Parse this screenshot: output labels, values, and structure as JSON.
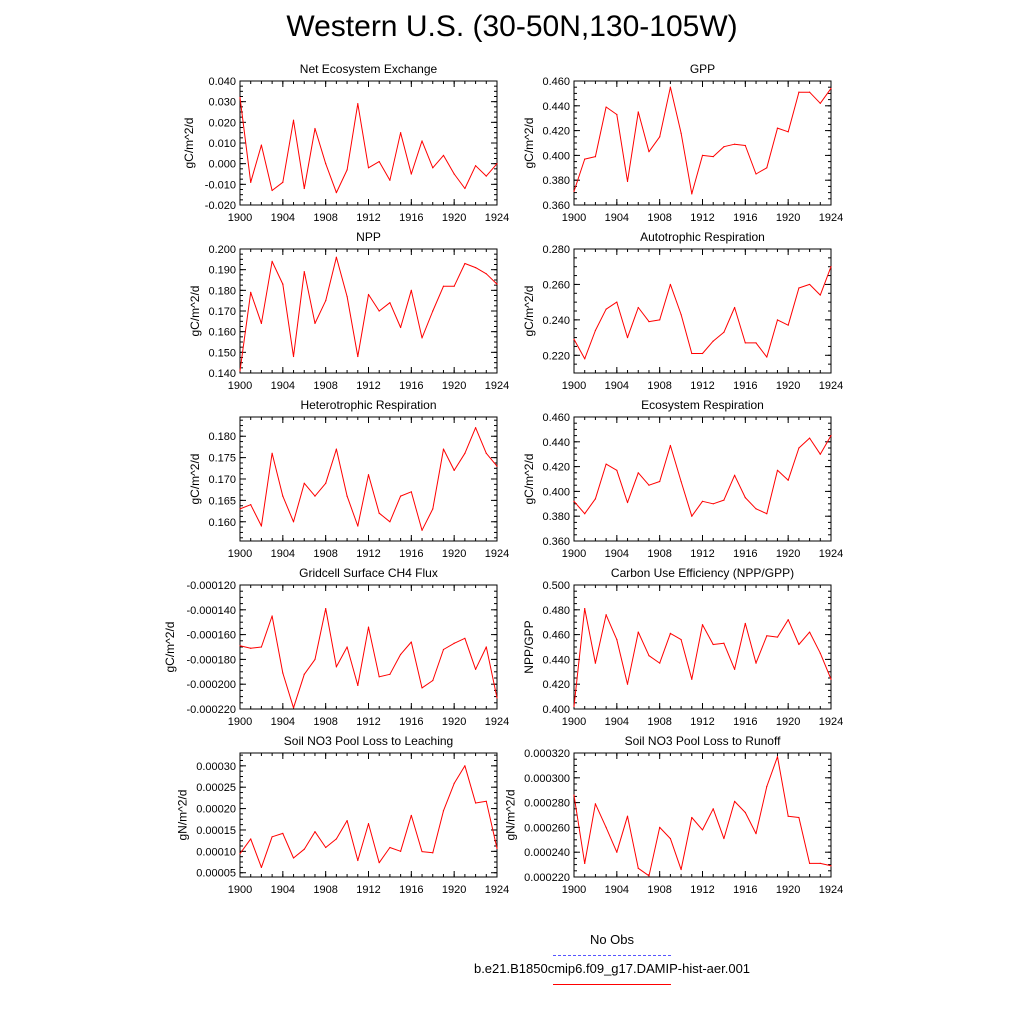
{
  "page": {
    "title": "Western U.S. (30-50N,130-105W)"
  },
  "legend": [
    {
      "label": "No Obs",
      "color": "#5555ff",
      "style": "dashed"
    },
    {
      "label": "b.e21.B1850cmip6.f09_g17.DAMIP-hist-aer.001",
      "color": "#ff0000",
      "style": "solid"
    }
  ],
  "chart_data": [
    {
      "type": "line",
      "title": "Net Ecosystem Exchange",
      "ylabel": "gC/m^2/d",
      "xlim": [
        1900,
        1924
      ],
      "ylim": [
        -0.02,
        0.04
      ],
      "xticks": [
        1900,
        1904,
        1908,
        1912,
        1916,
        1920,
        1924
      ],
      "xtick_labels": [
        "1900",
        "1904",
        "1908",
        "1912",
        "1916",
        "1920",
        "1924"
      ],
      "yticks": [
        -0.02,
        -0.01,
        0.0,
        0.01,
        0.02,
        0.03,
        0.04
      ],
      "ytick_labels": [
        "-0.020",
        "-0.010",
        "0.000",
        "0.010",
        "0.020",
        "0.030",
        "0.040"
      ],
      "series": [
        {
          "color": "#ff0000",
          "x": [
            1900,
            1901,
            1902,
            1903,
            1904,
            1905,
            1906,
            1907,
            1908,
            1909,
            1910,
            1911,
            1912,
            1913,
            1914,
            1915,
            1916,
            1917,
            1918,
            1919,
            1920,
            1921,
            1922,
            1923,
            1924
          ],
          "y": [
            0.032,
            -0.009,
            0.009,
            -0.013,
            -0.009,
            0.021,
            -0.012,
            0.017,
            0.0,
            -0.014,
            -0.003,
            0.029,
            -0.002,
            0.001,
            -0.008,
            0.015,
            -0.005,
            0.011,
            -0.002,
            0.004,
            -0.005,
            -0.012,
            -0.001,
            -0.006,
            0.0
          ]
        }
      ]
    },
    {
      "type": "line",
      "title": "GPP",
      "ylabel": "gC/m^2/d",
      "xlim": [
        1900,
        1924
      ],
      "ylim": [
        0.36,
        0.46
      ],
      "xticks": [
        1900,
        1904,
        1908,
        1912,
        1916,
        1920,
        1924
      ],
      "xtick_labels": [
        "1900",
        "1904",
        "1908",
        "1912",
        "1916",
        "1920",
        "1924"
      ],
      "yticks": [
        0.36,
        0.38,
        0.4,
        0.42,
        0.44,
        0.46
      ],
      "ytick_labels": [
        "0.360",
        "0.380",
        "0.400",
        "0.420",
        "0.440",
        "0.460"
      ],
      "series": [
        {
          "color": "#ff0000",
          "x": [
            1900,
            1901,
            1902,
            1903,
            1904,
            1905,
            1906,
            1907,
            1908,
            1909,
            1910,
            1911,
            1912,
            1913,
            1914,
            1915,
            1916,
            1917,
            1918,
            1919,
            1920,
            1921,
            1922,
            1923,
            1924
          ],
          "y": [
            0.371,
            0.397,
            0.399,
            0.439,
            0.433,
            0.379,
            0.435,
            0.403,
            0.415,
            0.455,
            0.418,
            0.369,
            0.4,
            0.399,
            0.407,
            0.409,
            0.408,
            0.385,
            0.39,
            0.422,
            0.419,
            0.451,
            0.451,
            0.442,
            0.454
          ]
        }
      ]
    },
    {
      "type": "line",
      "title": "NPP",
      "ylabel": "gC/m^2/d",
      "xlim": [
        1900,
        1924
      ],
      "ylim": [
        0.14,
        0.2
      ],
      "xticks": [
        1900,
        1904,
        1908,
        1912,
        1916,
        1920,
        1924
      ],
      "xtick_labels": [
        "1900",
        "1904",
        "1908",
        "1912",
        "1916",
        "1920",
        "1924"
      ],
      "yticks": [
        0.14,
        0.15,
        0.16,
        0.17,
        0.18,
        0.19,
        0.2
      ],
      "ytick_labels": [
        "0.140",
        "0.150",
        "0.160",
        "0.170",
        "0.180",
        "0.190",
        "0.200"
      ],
      "series": [
        {
          "color": "#ff0000",
          "x": [
            1900,
            1901,
            1902,
            1903,
            1904,
            1905,
            1906,
            1907,
            1908,
            1909,
            1910,
            1911,
            1912,
            1913,
            1914,
            1915,
            1916,
            1917,
            1918,
            1919,
            1920,
            1921,
            1922,
            1923,
            1924
          ],
          "y": [
            0.141,
            0.179,
            0.164,
            0.194,
            0.183,
            0.148,
            0.189,
            0.164,
            0.175,
            0.196,
            0.177,
            0.148,
            0.178,
            0.17,
            0.174,
            0.162,
            0.18,
            0.157,
            0.17,
            0.182,
            0.182,
            0.193,
            0.191,
            0.188,
            0.183
          ]
        }
      ]
    },
    {
      "type": "line",
      "title": "Autotrophic Respiration",
      "ylabel": "gC/m^2/d",
      "xlim": [
        1900,
        1924
      ],
      "ylim": [
        0.21,
        0.28
      ],
      "xticks": [
        1900,
        1904,
        1908,
        1912,
        1916,
        1920,
        1924
      ],
      "xtick_labels": [
        "1900",
        "1904",
        "1908",
        "1912",
        "1916",
        "1920",
        "1924"
      ],
      "yticks": [
        0.22,
        0.24,
        0.26,
        0.28
      ],
      "ytick_labels": [
        "0.220",
        "0.240",
        "0.260",
        "0.280"
      ],
      "series": [
        {
          "color": "#ff0000",
          "x": [
            1900,
            1901,
            1902,
            1903,
            1904,
            1905,
            1906,
            1907,
            1908,
            1909,
            1910,
            1911,
            1912,
            1913,
            1914,
            1915,
            1916,
            1917,
            1918,
            1919,
            1920,
            1921,
            1922,
            1923,
            1924
          ],
          "y": [
            0.229,
            0.218,
            0.234,
            0.246,
            0.25,
            0.23,
            0.247,
            0.239,
            0.24,
            0.26,
            0.243,
            0.221,
            0.221,
            0.228,
            0.233,
            0.247,
            0.227,
            0.227,
            0.219,
            0.24,
            0.237,
            0.258,
            0.26,
            0.254,
            0.27
          ]
        }
      ]
    },
    {
      "type": "line",
      "title": "Heterotrophic Respiration",
      "ylabel": "gC/m^2/d",
      "xlim": [
        1900,
        1924
      ],
      "ylim": [
        0.1555,
        0.1845
      ],
      "xticks": [
        1900,
        1904,
        1908,
        1912,
        1916,
        1920,
        1924
      ],
      "xtick_labels": [
        "1900",
        "1904",
        "1908",
        "1912",
        "1916",
        "1920",
        "1924"
      ],
      "yticks": [
        0.16,
        0.165,
        0.17,
        0.175,
        0.18
      ],
      "ytick_labels": [
        "0.160",
        "0.165",
        "0.170",
        "0.175",
        "0.180"
      ],
      "series": [
        {
          "color": "#ff0000",
          "x": [
            1900,
            1901,
            1902,
            1903,
            1904,
            1905,
            1906,
            1907,
            1908,
            1909,
            1910,
            1911,
            1912,
            1913,
            1914,
            1915,
            1916,
            1917,
            1918,
            1919,
            1920,
            1921,
            1922,
            1923,
            1924
          ],
          "y": [
            0.163,
            0.164,
            0.159,
            0.176,
            0.166,
            0.16,
            0.169,
            0.166,
            0.169,
            0.177,
            0.166,
            0.159,
            0.171,
            0.162,
            0.16,
            0.166,
            0.167,
            0.158,
            0.163,
            0.177,
            0.172,
            0.176,
            0.182,
            0.176,
            0.173
          ]
        }
      ]
    },
    {
      "type": "line",
      "title": "Ecosystem Respiration",
      "ylabel": "gC/m^2/d",
      "xlim": [
        1900,
        1924
      ],
      "ylim": [
        0.36,
        0.46
      ],
      "xticks": [
        1900,
        1904,
        1908,
        1912,
        1916,
        1920,
        1924
      ],
      "xtick_labels": [
        "1900",
        "1904",
        "1908",
        "1912",
        "1916",
        "1920",
        "1924"
      ],
      "yticks": [
        0.36,
        0.38,
        0.4,
        0.42,
        0.44,
        0.46
      ],
      "ytick_labels": [
        "0.360",
        "0.380",
        "0.400",
        "0.420",
        "0.440",
        "0.460"
      ],
      "series": [
        {
          "color": "#ff0000",
          "x": [
            1900,
            1901,
            1902,
            1903,
            1904,
            1905,
            1906,
            1907,
            1908,
            1909,
            1910,
            1911,
            1912,
            1913,
            1914,
            1915,
            1916,
            1917,
            1918,
            1919,
            1920,
            1921,
            1922,
            1923,
            1924
          ],
          "y": [
            0.392,
            0.382,
            0.394,
            0.422,
            0.417,
            0.391,
            0.415,
            0.405,
            0.408,
            0.437,
            0.408,
            0.38,
            0.392,
            0.39,
            0.393,
            0.413,
            0.395,
            0.386,
            0.382,
            0.417,
            0.409,
            0.435,
            0.443,
            0.43,
            0.445
          ]
        }
      ]
    },
    {
      "type": "line",
      "title": "Gridcell Surface CH4 Flux",
      "ylabel": "gC/m^2/d",
      "xlim": [
        1900,
        1924
      ],
      "ylim": [
        -0.00022,
        -0.00012
      ],
      "xticks": [
        1900,
        1904,
        1908,
        1912,
        1916,
        1920,
        1924
      ],
      "xtick_labels": [
        "1900",
        "1904",
        "1908",
        "1912",
        "1916",
        "1920",
        "1924"
      ],
      "yticks": [
        -0.00022,
        -0.0002,
        -0.00018,
        -0.00016,
        -0.00014,
        -0.00012
      ],
      "ytick_labels": [
        "-0.000220",
        "-0.000200",
        "-0.000180",
        "-0.000160",
        "-0.000140",
        "-0.000120"
      ],
      "series": [
        {
          "color": "#ff0000",
          "x": [
            1900,
            1901,
            1902,
            1903,
            1904,
            1905,
            1906,
            1907,
            1908,
            1909,
            1910,
            1911,
            1912,
            1913,
            1914,
            1915,
            1916,
            1917,
            1918,
            1919,
            1920,
            1921,
            1922,
            1923,
            1924
          ],
          "y": [
            -0.000169,
            -0.000171,
            -0.00017,
            -0.000145,
            -0.000191,
            -0.000219,
            -0.000192,
            -0.00018,
            -0.000139,
            -0.000186,
            -0.00017,
            -0.000201,
            -0.000154,
            -0.000194,
            -0.000192,
            -0.000176,
            -0.000166,
            -0.000203,
            -0.000197,
            -0.000172,
            -0.000167,
            -0.000163,
            -0.000188,
            -0.00017,
            -0.000211
          ]
        }
      ]
    },
    {
      "type": "line",
      "title": "Carbon Use Efficiency (NPP/GPP)",
      "ylabel": "NPP/GPP",
      "xlim": [
        1900,
        1924
      ],
      "ylim": [
        0.4,
        0.5
      ],
      "xticks": [
        1900,
        1904,
        1908,
        1912,
        1916,
        1920,
        1924
      ],
      "xtick_labels": [
        "1900",
        "1904",
        "1908",
        "1912",
        "1916",
        "1920",
        "1924"
      ],
      "yticks": [
        0.4,
        0.42,
        0.44,
        0.46,
        0.48,
        0.5
      ],
      "ytick_labels": [
        "0.400",
        "0.420",
        "0.440",
        "0.460",
        "0.480",
        "0.500"
      ],
      "series": [
        {
          "color": "#ff0000",
          "x": [
            1900,
            1901,
            1902,
            1903,
            1904,
            1905,
            1906,
            1907,
            1908,
            1909,
            1910,
            1911,
            1912,
            1913,
            1914,
            1915,
            1916,
            1917,
            1918,
            1919,
            1920,
            1921,
            1922,
            1923,
            1924
          ],
          "y": [
            0.402,
            0.481,
            0.437,
            0.476,
            0.456,
            0.42,
            0.462,
            0.443,
            0.437,
            0.461,
            0.456,
            0.424,
            0.468,
            0.452,
            0.453,
            0.432,
            0.469,
            0.437,
            0.459,
            0.458,
            0.472,
            0.452,
            0.462,
            0.445,
            0.424
          ]
        }
      ]
    },
    {
      "type": "line",
      "title": "Soil NO3 Pool Loss to Leaching",
      "ylabel": "gN/m^2/d",
      "xlim": [
        1900,
        1924
      ],
      "ylim": [
        4e-05,
        0.00033
      ],
      "xticks": [
        1900,
        1904,
        1908,
        1912,
        1916,
        1920,
        1924
      ],
      "xtick_labels": [
        "1900",
        "1904",
        "1908",
        "1912",
        "1916",
        "1920",
        "1924"
      ],
      "yticks": [
        5e-05,
        0.0001,
        0.00015,
        0.0002,
        0.00025,
        0.0003
      ],
      "ytick_labels": [
        "0.00005",
        "0.00010",
        "0.00015",
        "0.00020",
        "0.00025",
        "0.00030"
      ],
      "series": [
        {
          "color": "#ff0000",
          "x": [
            1900,
            1901,
            1902,
            1903,
            1904,
            1905,
            1906,
            1907,
            1908,
            1909,
            1910,
            1911,
            1912,
            1913,
            1914,
            1915,
            1916,
            1917,
            1918,
            1919,
            1920,
            1921,
            1922,
            1923,
            1924
          ],
          "y": [
            9.45e-05,
            0.000129,
            6.25e-05,
            0.000134,
            0.000142,
            8.45e-05,
            0.000105,
            0.000146,
            0.000109,
            0.000129,
            0.000172,
            7.85e-05,
            0.000165,
            7.35e-05,
            0.000109,
            0.0001,
            0.000184,
            9.95e-05,
            9.65e-05,
            0.000195,
            0.000259,
            0.0003,
            0.000213,
            0.000217,
            0.000107
          ]
        }
      ]
    },
    {
      "type": "line",
      "title": "Soil NO3 Pool Loss to Runoff",
      "ylabel": "gN/m^2/d",
      "xlim": [
        1900,
        1924
      ],
      "ylim": [
        0.00022,
        0.00032
      ],
      "xticks": [
        1900,
        1904,
        1908,
        1912,
        1916,
        1920,
        1924
      ],
      "xtick_labels": [
        "1900",
        "1904",
        "1908",
        "1912",
        "1916",
        "1920",
        "1924"
      ],
      "yticks": [
        0.00022,
        0.00024,
        0.00026,
        0.00028,
        0.0003,
        0.00032
      ],
      "ytick_labels": [
        "0.000220",
        "0.000240",
        "0.000260",
        "0.000280",
        "0.000300",
        "0.000320"
      ],
      "series": [
        {
          "color": "#ff0000",
          "x": [
            1900,
            1901,
            1902,
            1903,
            1904,
            1905,
            1906,
            1907,
            1908,
            1909,
            1910,
            1911,
            1912,
            1913,
            1914,
            1915,
            1916,
            1917,
            1918,
            1919,
            1920,
            1921,
            1922,
            1923,
            1924
          ],
          "y": [
            0.000286,
            0.000231,
            0.000279,
            0.00026,
            0.00024,
            0.000269,
            0.000227,
            0.000221,
            0.00026,
            0.000251,
            0.000226,
            0.000268,
            0.000258,
            0.000275,
            0.000251,
            0.000281,
            0.000272,
            0.000255,
            0.000293,
            0.000317,
            0.000269,
            0.000268,
            0.000231,
            0.000231,
            0.000229
          ]
        }
      ]
    }
  ]
}
